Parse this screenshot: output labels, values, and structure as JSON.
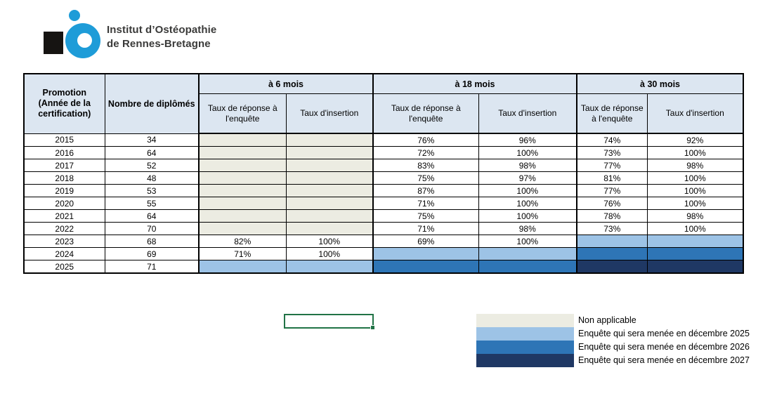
{
  "logo": {
    "line1": "Institut d’Ostéopathie",
    "line2": "de Rennes-Bretagne"
  },
  "colors": {
    "header_bg": "#DCE6F1",
    "non_applicable": "#ECECE2",
    "dec2025": "#9DC3E6",
    "dec2026": "#2E75B6",
    "dec2027": "#1F3864",
    "selection_green": "#217346",
    "logo_blue": "#1E9CD8",
    "logo_black": "#161412",
    "border_black": "#000000"
  },
  "table": {
    "col_promotion": {
      "title": "Promotion",
      "subtitle": "(Année de la certification)"
    },
    "col_diplomes": "Nombre de diplômés",
    "groups": [
      {
        "label": "à 6 mois"
      },
      {
        "label": "à 18 mois"
      },
      {
        "label": "à 30 mois"
      }
    ],
    "subheader_reponse": "Taux de réponse à l'enquête",
    "subheader_insertion": "Taux d'insertion",
    "rows": [
      {
        "year": "2015",
        "diplomes": "34",
        "cells": [
          {
            "text": "",
            "fill": "non_applicable"
          },
          {
            "text": "",
            "fill": "non_applicable"
          },
          {
            "text": "76%",
            "fill": "none"
          },
          {
            "text": "96%",
            "fill": "none"
          },
          {
            "text": "74%",
            "fill": "none"
          },
          {
            "text": "92%",
            "fill": "none"
          }
        ]
      },
      {
        "year": "2016",
        "diplomes": "64",
        "cells": [
          {
            "text": "",
            "fill": "non_applicable"
          },
          {
            "text": "",
            "fill": "non_applicable"
          },
          {
            "text": "72%",
            "fill": "none"
          },
          {
            "text": "100%",
            "fill": "none"
          },
          {
            "text": "73%",
            "fill": "none"
          },
          {
            "text": "100%",
            "fill": "none"
          }
        ]
      },
      {
        "year": "2017",
        "diplomes": "52",
        "cells": [
          {
            "text": "",
            "fill": "non_applicable"
          },
          {
            "text": "",
            "fill": "non_applicable"
          },
          {
            "text": "83%",
            "fill": "none"
          },
          {
            "text": "98%",
            "fill": "none"
          },
          {
            "text": "77%",
            "fill": "none"
          },
          {
            "text": "98%",
            "fill": "none"
          }
        ]
      },
      {
        "year": "2018",
        "diplomes": "48",
        "cells": [
          {
            "text": "",
            "fill": "non_applicable"
          },
          {
            "text": "",
            "fill": "non_applicable"
          },
          {
            "text": "75%",
            "fill": "none"
          },
          {
            "text": "97%",
            "fill": "none"
          },
          {
            "text": "81%",
            "fill": "none"
          },
          {
            "text": "100%",
            "fill": "none"
          }
        ]
      },
      {
        "year": "2019",
        "diplomes": "53",
        "cells": [
          {
            "text": "",
            "fill": "non_applicable"
          },
          {
            "text": "",
            "fill": "non_applicable"
          },
          {
            "text": "87%",
            "fill": "none"
          },
          {
            "text": "100%",
            "fill": "none"
          },
          {
            "text": "77%",
            "fill": "none"
          },
          {
            "text": "100%",
            "fill": "none"
          }
        ]
      },
      {
        "year": "2020",
        "diplomes": "55",
        "cells": [
          {
            "text": "",
            "fill": "non_applicable"
          },
          {
            "text": "",
            "fill": "non_applicable"
          },
          {
            "text": "71%",
            "fill": "none"
          },
          {
            "text": "100%",
            "fill": "none"
          },
          {
            "text": "76%",
            "fill": "none"
          },
          {
            "text": "100%",
            "fill": "none"
          }
        ]
      },
      {
        "year": "2021",
        "diplomes": "64",
        "cells": [
          {
            "text": "",
            "fill": "non_applicable"
          },
          {
            "text": "",
            "fill": "non_applicable"
          },
          {
            "text": "75%",
            "fill": "none"
          },
          {
            "text": "100%",
            "fill": "none"
          },
          {
            "text": "78%",
            "fill": "none"
          },
          {
            "text": "98%",
            "fill": "none"
          }
        ]
      },
      {
        "year": "2022",
        "diplomes": "70",
        "cells": [
          {
            "text": "",
            "fill": "non_applicable"
          },
          {
            "text": "",
            "fill": "non_applicable"
          },
          {
            "text": "71%",
            "fill": "none"
          },
          {
            "text": "98%",
            "fill": "none"
          },
          {
            "text": "73%",
            "fill": "none"
          },
          {
            "text": "100%",
            "fill": "none"
          }
        ]
      },
      {
        "year": "2023",
        "diplomes": "68",
        "cells": [
          {
            "text": "82%",
            "fill": "none"
          },
          {
            "text": "100%",
            "fill": "none"
          },
          {
            "text": "69%",
            "fill": "none"
          },
          {
            "text": "100%",
            "fill": "none"
          },
          {
            "text": "",
            "fill": "dec2025"
          },
          {
            "text": "",
            "fill": "dec2025"
          }
        ]
      },
      {
        "year": "2024",
        "diplomes": "69",
        "cells": [
          {
            "text": "71%",
            "fill": "none"
          },
          {
            "text": "100%",
            "fill": "none"
          },
          {
            "text": "",
            "fill": "dec2025"
          },
          {
            "text": "",
            "fill": "dec2025"
          },
          {
            "text": "",
            "fill": "dec2026"
          },
          {
            "text": "",
            "fill": "dec2026"
          }
        ]
      },
      {
        "year": "2025",
        "diplomes": "71",
        "cells": [
          {
            "text": "",
            "fill": "dec2025"
          },
          {
            "text": "",
            "fill": "dec2025"
          },
          {
            "text": "",
            "fill": "dec2026"
          },
          {
            "text": "",
            "fill": "dec2026"
          },
          {
            "text": "",
            "fill": "dec2027"
          },
          {
            "text": "",
            "fill": "dec2027"
          }
        ]
      }
    ]
  },
  "legend": {
    "items": [
      {
        "fill": "non_applicable",
        "label": "Non applicable"
      },
      {
        "fill": "dec2025",
        "label": "Enquête qui sera menée en décembre 2025"
      },
      {
        "fill": "dec2026",
        "label": "Enquête qui sera menée en décembre 2026"
      },
      {
        "fill": "dec2027",
        "label": "Enquête qui sera menée en décembre 2027"
      }
    ]
  }
}
